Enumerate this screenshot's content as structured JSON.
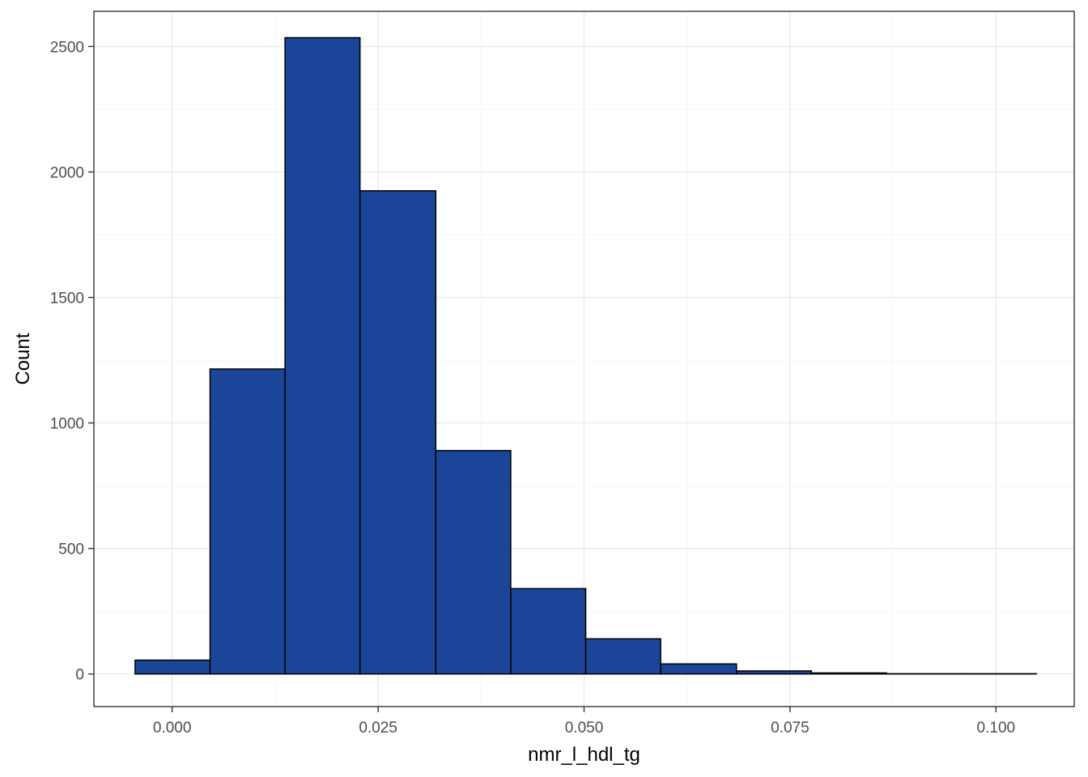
{
  "chart_data": {
    "type": "bar",
    "subtype": "histogram",
    "title": "",
    "xlabel": "nmr_l_hdl_tg",
    "ylabel": "Count",
    "bar_color": "#1a4599",
    "bar_edge_color": "#000000",
    "grid": true,
    "legend": "none",
    "xlim": [
      -0.0095,
      0.1095
    ],
    "ylim": [
      -130,
      2640
    ],
    "x_ticks": [
      0.0,
      0.025,
      0.05,
      0.075,
      0.1
    ],
    "x_tick_labels": [
      "0.000",
      "0.025",
      "0.050",
      "0.075",
      "0.100"
    ],
    "y_ticks": [
      0,
      500,
      1000,
      1500,
      2000,
      2500
    ],
    "y_tick_labels": [
      "0",
      "500",
      "1000",
      "1500",
      "2000",
      "2500"
    ],
    "bins": [
      {
        "x0": -0.0045,
        "x1": 0.0046,
        "count": 55
      },
      {
        "x0": 0.0046,
        "x1": 0.0137,
        "count": 1215
      },
      {
        "x0": 0.0137,
        "x1": 0.0228,
        "count": 2535
      },
      {
        "x0": 0.0228,
        "x1": 0.032,
        "count": 1925
      },
      {
        "x0": 0.032,
        "x1": 0.0411,
        "count": 890
      },
      {
        "x0": 0.0411,
        "x1": 0.0502,
        "count": 340
      },
      {
        "x0": 0.0502,
        "x1": 0.0593,
        "count": 140
      },
      {
        "x0": 0.0593,
        "x1": 0.0685,
        "count": 40
      },
      {
        "x0": 0.0685,
        "x1": 0.0776,
        "count": 12
      },
      {
        "x0": 0.0776,
        "x1": 0.0867,
        "count": 4
      },
      {
        "x0": 0.0867,
        "x1": 0.0958,
        "count": 1
      },
      {
        "x0": 0.0958,
        "x1": 0.1049,
        "count": 1
      }
    ]
  }
}
